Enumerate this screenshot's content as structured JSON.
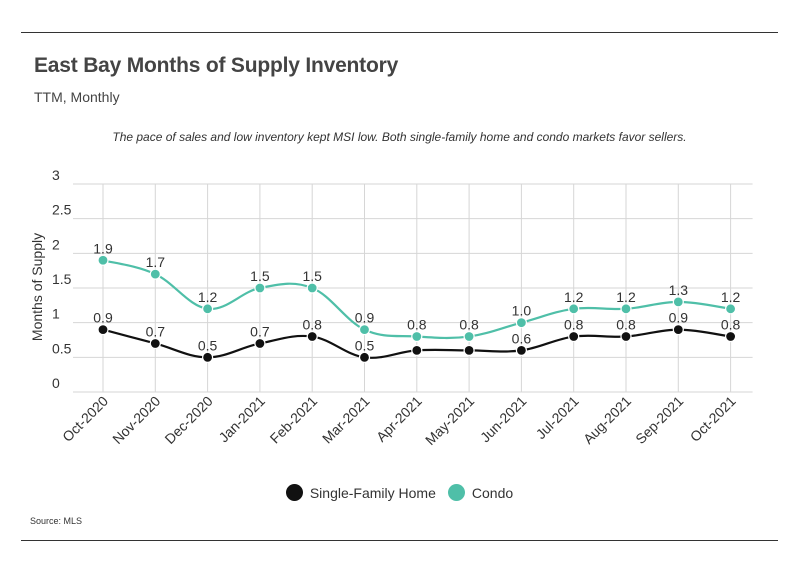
{
  "header": {
    "title": "East Bay Months of Supply Inventory",
    "subtitle": "TTM, Monthly",
    "note": "The pace of sales and low inventory kept MSI low. Both single-family home and condo markets favor sellers."
  },
  "footer": {
    "source": "Source:  MLS"
  },
  "colors": {
    "single_family": "#111111",
    "condo": "#4fbfa8",
    "grid": "#d6d6d6",
    "axis_text": "#333333",
    "rule": "#333333"
  },
  "chart_data": {
    "type": "line",
    "title": "East Bay Months of Supply Inventory",
    "subtitle": "TTM, Monthly",
    "xlabel": "",
    "ylabel": "Months of Supply",
    "ylim": [
      0,
      3
    ],
    "yticks": [
      "0",
      "0.5",
      "1",
      "1.5",
      "2",
      "2.5",
      "3"
    ],
    "categories": [
      "Oct-2020",
      "Nov-2020",
      "Dec-2020",
      "Jan-2021",
      "Feb-2021",
      "Mar-2021",
      "Apr-2021",
      "May-2021",
      "Jun-2021",
      "Jul-2021",
      "Aug-2021",
      "Sep-2021",
      "Oct-2021"
    ],
    "grid": true,
    "legend_position": "bottom",
    "series": [
      {
        "name": "Single-Family Home",
        "values": [
          0.9,
          0.7,
          0.5,
          0.7,
          0.8,
          0.5,
          0.6,
          0.6,
          0.6,
          0.8,
          0.8,
          0.9,
          0.8
        ],
        "labels": [
          "0.9",
          "0.7",
          "0.5",
          "0.7",
          "0.8",
          "0.5",
          "",
          "",
          "0.6",
          "0.8",
          "0.8",
          "0.9",
          "0.8"
        ]
      },
      {
        "name": "Condo",
        "values": [
          1.9,
          1.7,
          1.2,
          1.5,
          1.5,
          0.9,
          0.8,
          0.8,
          1.0,
          1.2,
          1.2,
          1.3,
          1.2
        ],
        "labels": [
          "1.9",
          "1.7",
          "1.2",
          "1.5",
          "1.5",
          "0.9",
          "0.8",
          "0.8",
          "1.0",
          "1.2",
          "1.2",
          "1.3",
          "1.2"
        ]
      }
    ]
  }
}
